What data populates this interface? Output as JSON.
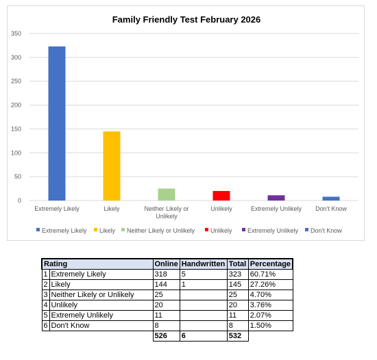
{
  "chart_data": {
    "type": "bar",
    "title": "Family Friendly Test February 2026",
    "categories": [
      "Extremely Likely",
      "Likely",
      "Neither Likely or Unlikely",
      "Unlikely",
      "Extremely Unlikely",
      "Don't Know"
    ],
    "values": [
      323,
      145,
      25,
      20,
      11,
      8
    ],
    "colors": [
      "#4472c4",
      "#ffc000",
      "#a9d18e",
      "#ff0000",
      "#7030a0",
      "#4472c4"
    ],
    "ylim": [
      0,
      350
    ],
    "yticks": [
      0,
      50,
      100,
      150,
      200,
      250,
      300,
      350
    ],
    "xlabel": "",
    "ylabel": "",
    "grid": true,
    "legend_position": "bottom"
  },
  "table": {
    "headers": [
      "Rating",
      "Online",
      "Handwritten",
      "Total",
      "Percentage"
    ],
    "rows": [
      {
        "index": "1",
        "rating": "Extremely Likely",
        "online": "318",
        "handwritten": "5",
        "total": "323",
        "percentage": "60.71%"
      },
      {
        "index": "2",
        "rating": "Likely",
        "online": "144",
        "handwritten": "1",
        "total": "145",
        "percentage": "27.26%"
      },
      {
        "index": "3",
        "rating": "Neither Likely or Unlikely",
        "online": "25",
        "handwritten": "",
        "total": "25",
        "percentage": "4.70%"
      },
      {
        "index": "4",
        "rating": "Unlikely",
        "online": "20",
        "handwritten": "",
        "total": "20",
        "percentage": "3.76%"
      },
      {
        "index": "5",
        "rating": "Extremely Unlikely",
        "online": "11",
        "handwritten": "",
        "total": "11",
        "percentage": "2.07%"
      },
      {
        "index": "6",
        "rating": "Don't Know",
        "online": "8",
        "handwritten": "",
        "total": "8",
        "percentage": "1.50%"
      }
    ],
    "totals": {
      "online": "526",
      "handwritten": "6",
      "total": "532"
    }
  }
}
